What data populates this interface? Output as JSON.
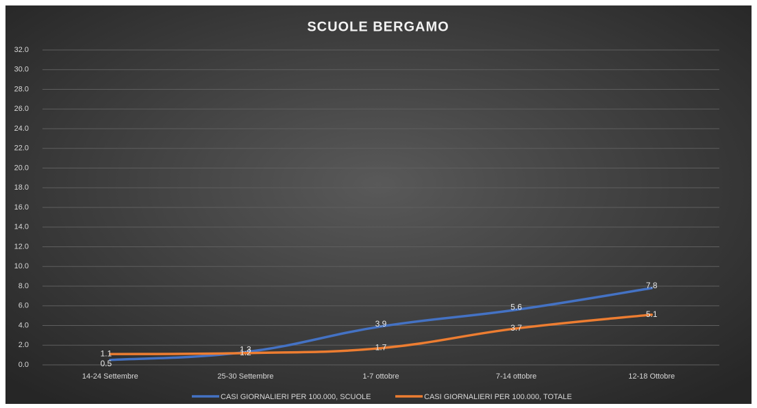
{
  "chart_data": {
    "type": "line",
    "title": "SCUOLE BERGAMO",
    "categories": [
      "14-24 Settembre",
      "25-30 Settembre",
      "1-7 ottobre",
      "7-14 ottobre",
      "12-18 Ottobre"
    ],
    "series": [
      {
        "name": "CASI GIORNALIERI PER 100.000, SCUOLE",
        "color": "#4472c4",
        "values": [
          0.5,
          1.3,
          3.9,
          5.6,
          7.8
        ]
      },
      {
        "name": "CASI GIORNALIERI PER 100.000, TOTALE",
        "color": "#ed7d31",
        "values": [
          1.1,
          1.2,
          1.7,
          3.7,
          5.1
        ]
      }
    ],
    "ylim": [
      0,
      32
    ],
    "yticks": [
      {
        "value": 0,
        "label": "0.0"
      },
      {
        "value": 2,
        "label": "2.0"
      },
      {
        "value": 4,
        "label": "4.0"
      },
      {
        "value": 6,
        "label": "6.0"
      },
      {
        "value": 8,
        "label": "8.0"
      },
      {
        "value": 10,
        "label": "10.0"
      },
      {
        "value": 12,
        "label": "12.0"
      },
      {
        "value": 14,
        "label": "14.0"
      },
      {
        "value": 16,
        "label": "16.0"
      },
      {
        "value": 18,
        "label": "18.0"
      },
      {
        "value": 20,
        "label": "20.0"
      },
      {
        "value": 22,
        "label": "22.0"
      },
      {
        "value": 24,
        "label": "24.0"
      },
      {
        "value": 26,
        "label": "26.0"
      },
      {
        "value": 28,
        "label": "28.0"
      },
      {
        "value": 30,
        "label": "30.0"
      },
      {
        "value": 32,
        "label": "32.0"
      }
    ],
    "grid": true,
    "legend": "bottom"
  }
}
